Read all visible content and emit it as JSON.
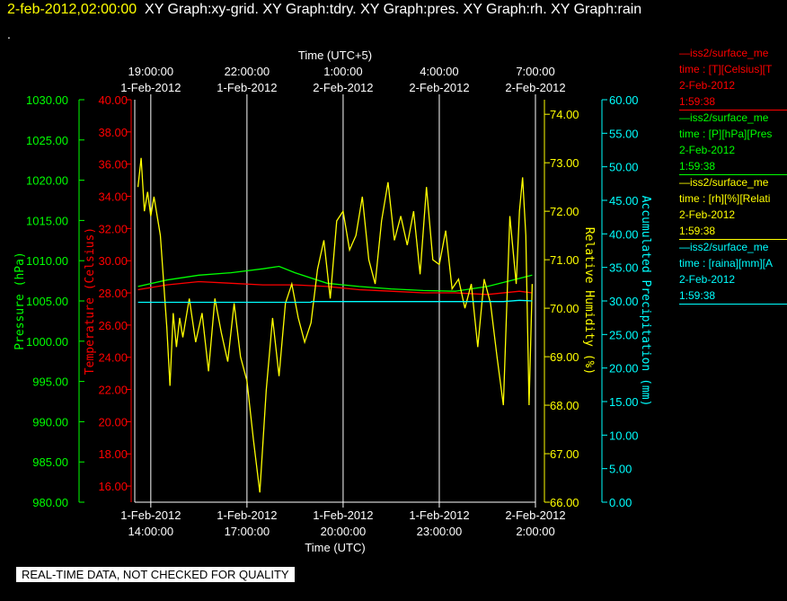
{
  "header": {
    "timestamp": "2-feb-2012,02:00:00",
    "graphs": "XY Graph:xy-grid.  XY Graph:tdry.  XY Graph:pres.  XY Graph:rh.  XY Graph:rain",
    "dot": "."
  },
  "footer": "REAL-TIME DATA, NOT CHECKED FOR QUALITY",
  "colors": {
    "temperature": "#ff0000",
    "pressure": "#00ff00",
    "humidity": "#ffff00",
    "precipitation": "#00ffff",
    "grid": "#ffffff",
    "background": "#000000"
  },
  "legend": [
    {
      "line1": "—iss2/surface_me",
      "line2": "time : [T][Celsius][T",
      "line3": "2-Feb-2012",
      "line4": "1:59:38",
      "color": "#ff0000"
    },
    {
      "line1": "—iss2/surface_me",
      "line2": "time : [P][hPa][Pres",
      "line3": "2-Feb-2012",
      "line4": "1:59:38",
      "color": "#00ff00"
    },
    {
      "line1": "—iss2/surface_me",
      "line2": "time : [rh][%][Relati",
      "line3": "2-Feb-2012",
      "line4": "1:59:38",
      "color": "#ffff00"
    },
    {
      "line1": "—iss2/surface_me",
      "line2": "time : [raina][mm][A",
      "line3": "2-Feb-2012",
      "line4": "1:59:38",
      "color": "#00ffff"
    }
  ],
  "chart_data": {
    "type": "line",
    "grid": true,
    "x_top": {
      "label": "Time (UTC+5)",
      "ticks": [
        {
          "time": "19:00:00",
          "date": "1-Feb-2012"
        },
        {
          "time": "22:00:00",
          "date": "1-Feb-2012"
        },
        {
          "time": "1:00:00",
          "date": "2-Feb-2012"
        },
        {
          "time": "4:00:00",
          "date": "2-Feb-2012"
        },
        {
          "time": "7:00:00",
          "date": "2-Feb-2012"
        }
      ]
    },
    "x_bottom": {
      "label": "Time (UTC)",
      "ticks": [
        {
          "date": "1-Feb-2012",
          "time": "14:00:00"
        },
        {
          "date": "1-Feb-2012",
          "time": "17:00:00"
        },
        {
          "date": "1-Feb-2012",
          "time": "20:00:00"
        },
        {
          "date": "1-Feb-2012",
          "time": "23:00:00"
        },
        {
          "date": "2-Feb-2012",
          "time": "2:00:00"
        }
      ]
    },
    "xlim_hours_utc": [
      13.5,
      26.0
    ],
    "axes": {
      "pressure": {
        "label": "Pressure (hPa)",
        "ylim": [
          980,
          1030
        ],
        "ticks": [
          "1030.00",
          "1025.00",
          "1020.00",
          "1015.00",
          "1010.00",
          "1005.00",
          "1000.00",
          "995.00",
          "990.00",
          "985.00",
          "980.00"
        ]
      },
      "temperature": {
        "label": "Temperature (Celsius)",
        "ylim": [
          15,
          40
        ],
        "ticks": [
          "40.00",
          "38.00",
          "36.00",
          "34.00",
          "32.00",
          "30.00",
          "28.00",
          "26.00",
          "24.00",
          "22.00",
          "20.00",
          "18.00",
          "16.00"
        ]
      },
      "humidity": {
        "label": "Relative Humidity (%)",
        "ylim": [
          66,
          74.3
        ],
        "ticks": [
          "74.00",
          "73.00",
          "72.00",
          "71.00",
          "70.00",
          "69.00",
          "68.00",
          "67.00",
          "66.00"
        ]
      },
      "precipitation": {
        "label": "Accumulated Precipitation (mm)",
        "ylim": [
          0,
          60
        ],
        "ticks": [
          "60.00",
          "55.00",
          "50.00",
          "45.00",
          "40.00",
          "35.00",
          "30.00",
          "25.00",
          "20.00",
          "15.00",
          "10.00",
          "5.00",
          "0.00"
        ]
      }
    },
    "series": [
      {
        "name": "iss2/surface_me time : [T][Celsius]",
        "axis": "temperature",
        "x": [
          13.6,
          14.5,
          15.5,
          16.5,
          17.5,
          18.5,
          19.5,
          20.5,
          21.5,
          22.5,
          23.5,
          24.5,
          25.5,
          25.9
        ],
        "values": [
          28.2,
          28.5,
          28.7,
          28.6,
          28.5,
          28.5,
          28.4,
          28.2,
          28.1,
          28.0,
          28.0,
          27.9,
          28.1,
          28.0
        ]
      },
      {
        "name": "iss2/surface_me time : [P][hPa]",
        "axis": "pressure",
        "x": [
          13.6,
          14.5,
          15.5,
          16.5,
          17.5,
          18.0,
          18.5,
          19.5,
          20.5,
          21.5,
          22.5,
          23.5,
          24.5,
          25.5,
          25.9
        ],
        "values": [
          1006.8,
          1007.6,
          1008.2,
          1008.5,
          1009.0,
          1009.3,
          1008.5,
          1007.2,
          1006.8,
          1006.5,
          1006.3,
          1006.2,
          1006.8,
          1007.8,
          1008.2
        ]
      },
      {
        "name": "iss2/surface_me time : [rh][%]",
        "axis": "humidity",
        "x": [
          13.6,
          13.7,
          13.8,
          13.9,
          14.0,
          14.1,
          14.3,
          14.5,
          14.6,
          14.7,
          14.8,
          14.9,
          15.0,
          15.2,
          15.4,
          15.6,
          15.8,
          16.0,
          16.2,
          16.4,
          16.6,
          16.8,
          17.0,
          17.2,
          17.4,
          17.6,
          17.8,
          18.0,
          18.2,
          18.4,
          18.6,
          18.8,
          19.0,
          19.2,
          19.4,
          19.6,
          19.8,
          20.0,
          20.2,
          20.4,
          20.6,
          20.8,
          21.0,
          21.2,
          21.4,
          21.6,
          21.8,
          22.0,
          22.2,
          22.4,
          22.6,
          22.8,
          23.0,
          23.2,
          23.4,
          23.6,
          23.8,
          24.0,
          24.2,
          24.4,
          24.6,
          24.8,
          25.0,
          25.2,
          25.4,
          25.5,
          25.6,
          25.7,
          25.8,
          25.9
        ],
        "values": [
          72.5,
          73.1,
          72.0,
          72.4,
          71.9,
          72.3,
          71.5,
          69.6,
          68.4,
          69.9,
          69.2,
          69.8,
          69.4,
          70.2,
          69.3,
          69.9,
          68.7,
          70.2,
          69.5,
          68.9,
          70.1,
          69.0,
          68.5,
          67.3,
          66.2,
          68.3,
          69.8,
          68.6,
          70.1,
          70.5,
          69.8,
          69.3,
          69.7,
          70.8,
          71.4,
          70.2,
          71.8,
          72.0,
          71.2,
          71.5,
          72.3,
          71.0,
          70.5,
          71.8,
          72.6,
          71.4,
          71.9,
          71.3,
          72.0,
          70.7,
          72.5,
          71.0,
          70.9,
          71.6,
          70.4,
          70.6,
          70.0,
          70.5,
          69.2,
          70.6,
          70.1,
          69.0,
          68.0,
          71.9,
          70.5,
          72.0,
          72.7,
          71.5,
          68.0,
          70.5
        ]
      },
      {
        "name": "iss2/surface_me time : [raina][mm]",
        "axis": "precipitation",
        "x": [
          13.6,
          19.0,
          19.01,
          25.0,
          25.5,
          25.9
        ],
        "values": [
          29.8,
          29.8,
          29.9,
          29.9,
          30.1,
          30.0
        ]
      }
    ]
  }
}
